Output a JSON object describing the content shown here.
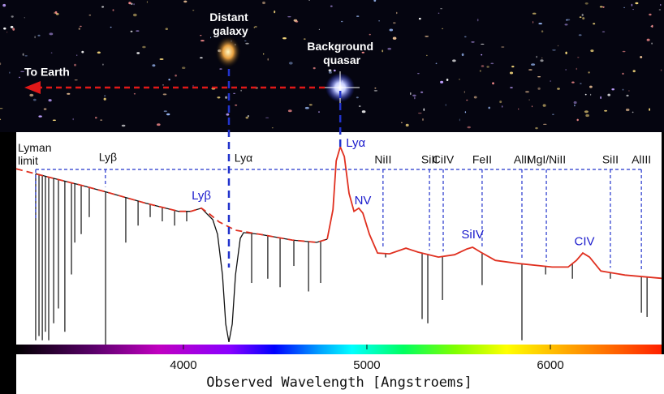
{
  "chart_data": {
    "type": "line",
    "x_label": "Observed Wavelength [Angstroems]",
    "xlim": [
      3089,
      6606
    ],
    "xticks": [
      4000,
      5000,
      6000
    ],
    "ylim": [
      0,
      100
    ],
    "image_labels": {
      "galaxy": "Distant galaxy",
      "quasar": "Background quasar",
      "earth": "To Earth"
    },
    "series": [
      {
        "color": "#e03020",
        "style": "dashed",
        "x": [
          3089,
          3266,
          3443,
          3576,
          3797,
          3974,
          4040,
          4098,
          4142,
          4195,
          4284,
          4416,
          4593,
          4726,
          4784
        ],
        "values": [
          82.7,
          78.8,
          75,
          71.9,
          66.5,
          62.7,
          62.7,
          64.2,
          61.5,
          57.7,
          53.8,
          51.9,
          49.2,
          48.1,
          49.6
        ]
      },
      {
        "color": "#111111",
        "style": "solid",
        "x": [
          3195,
          3266,
          3443,
          3576,
          3797,
          3974,
          4040,
          4098,
          4129,
          4160,
          4186,
          4213,
          4231,
          4248,
          4266,
          4284,
          4310,
          4328,
          4416,
          4593,
          4726,
          4784
        ],
        "values": [
          80.5,
          78.8,
          75,
          71.9,
          66.5,
          62.7,
          62.7,
          64.2,
          61.5,
          58.8,
          51.9,
          32.7,
          9.6,
          1.2,
          9.6,
          32.7,
          50,
          52.7,
          51.9,
          49.2,
          48.1,
          49.6
        ]
      },
      {
        "color": "#e03020",
        "style": "solid",
        "x": [
          4784,
          4815,
          4833,
          4855,
          4877,
          4903,
          4930,
          4956,
          4978,
          5014,
          5058,
          5124,
          5213,
          5279,
          5390,
          5478,
          5545,
          5576,
          5620,
          5700,
          5832,
          6009,
          6097,
          6142,
          6177,
          6213,
          6275,
          6407,
          6606
        ],
        "values": [
          49.6,
          63.5,
          86.5,
          93.1,
          88.5,
          71.2,
          62.7,
          64.2,
          61.9,
          51.9,
          43.1,
          42.7,
          45.4,
          43.5,
          41.2,
          42.3,
          45,
          45.8,
          43.5,
          39.6,
          38.1,
          36.5,
          36.5,
          39.6,
          43.1,
          41.2,
          34.6,
          32.7,
          31.2
        ]
      }
    ],
    "absorption": {
      "color": "#111111",
      "x": [
        3195,
        3213,
        3231,
        3248,
        3266,
        3293,
        3319,
        3354,
        3390,
        3408,
        3443,
        3487,
        3576,
        3686,
        3753,
        3819,
        3885,
        3952,
        4018,
        4372,
        4460,
        4527,
        4602,
        4682,
        4748,
        5102,
        5301,
        5332,
        5412,
        5628,
        5845,
        5974,
        6120,
        6327,
        6496,
        6527
      ],
      "values": [
        2,
        4,
        2,
        6,
        2,
        10,
        17,
        6,
        33,
        48,
        52,
        60,
        0,
        48,
        56,
        60,
        58,
        56,
        58,
        29,
        31,
        27,
        37,
        25,
        29,
        41,
        12,
        10,
        21,
        28,
        2,
        33,
        31,
        31,
        15,
        13
      ]
    },
    "galaxy_lines": {
      "color": "#2233cc",
      "labels": [
        "Lyman limit",
        "Lyβ",
        "Lyα",
        "NiII",
        "SiII",
        "CiIV",
        "FeII",
        "AlII",
        "MgI/NiII",
        "SiII",
        "AlIII"
      ],
      "x": [
        3195,
        3575,
        4248,
        5088,
        5341,
        5416,
        5628,
        5845,
        5978,
        6327,
        6496
      ]
    },
    "quasar_lines": {
      "color": "#2233cc",
      "labels": [
        "Lyα",
        "Lyβ",
        "NV",
        "SiIV",
        "CIV"
      ],
      "x": [
        4855,
        4098,
        4978,
        5576,
        6186
      ]
    }
  }
}
